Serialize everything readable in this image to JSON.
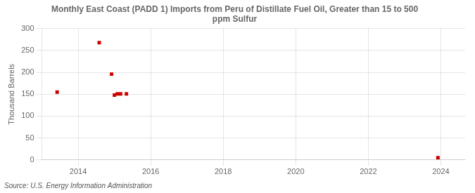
{
  "chart_data": {
    "type": "scatter",
    "title": "Monthly East Coast (PADD 1) Imports from Peru of Distillate Fuel Oil, Greater than 15 to 500\nppm Sulfur",
    "ylabel": "Thousand Barrels",
    "source": "Source: U.S. Energy Information Administration",
    "x": [
      2013.42,
      2014.58,
      2014.92,
      2015.0,
      2015.08,
      2015.17,
      2015.33,
      2023.92
    ],
    "values": [
      155,
      268,
      196,
      148,
      151,
      151,
      151,
      5
    ],
    "color": "#cc0000",
    "marker": "square",
    "xlim": [
      2013.0,
      2024.67
    ],
    "ylim": [
      0,
      300
    ],
    "xticks": [
      2014,
      2016,
      2018,
      2020,
      2022,
      2024
    ],
    "yticks": [
      0,
      50,
      100,
      150,
      200,
      250,
      300
    ],
    "grid": true
  }
}
